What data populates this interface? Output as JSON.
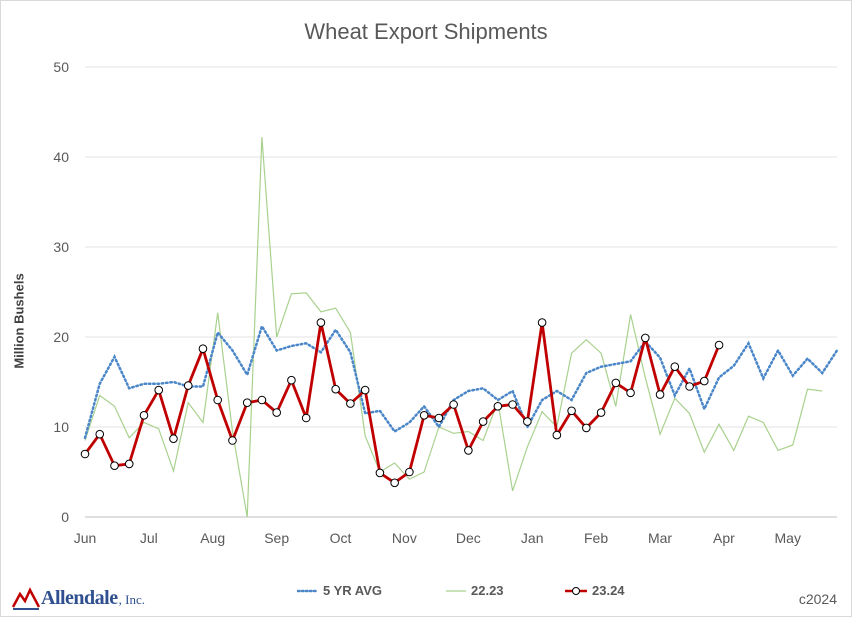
{
  "chart_data": {
    "type": "line",
    "title": "Wheat Export Shipments",
    "ylabel": "Million Bushels",
    "xlabel": "",
    "ylim": [
      0,
      50
    ],
    "yticks": [
      0,
      10,
      20,
      30,
      40,
      50
    ],
    "month_labels": [
      "Jun",
      "Jul",
      "Aug",
      "Sep",
      "Oct",
      "Nov",
      "Dec",
      "Jan",
      "Feb",
      "Mar",
      "Apr",
      "May"
    ],
    "grid": "horizontal",
    "legend_position": "bottom",
    "series": [
      {
        "name": "5 YR AVG",
        "color": "#4a86c8",
        "style": "dotted",
        "values": [
          8.8,
          14.8,
          17.8,
          14.3,
          14.8,
          14.8,
          15.0,
          14.5,
          14.5,
          20.5,
          18.5,
          15.8,
          21.2,
          18.5,
          19.0,
          19.3,
          18.3,
          20.8,
          18.3,
          11.5,
          11.8,
          9.5,
          10.5,
          12.3,
          10.0,
          13.0,
          14.0,
          14.3,
          13.0,
          14.0,
          10.0,
          13.0,
          14.0,
          13.0,
          16.0,
          16.7,
          17.0,
          17.3,
          19.5,
          17.7,
          13.5,
          16.5,
          12.0,
          15.5,
          16.8,
          19.3,
          15.4,
          18.5,
          15.7,
          17.6,
          16.0,
          18.5
        ]
      },
      {
        "name": "22.23",
        "color": "#a9d18e",
        "style": "thin",
        "values": [
          8.5,
          13.5,
          12.3,
          8.8,
          10.5,
          9.8,
          5.1,
          12.7,
          10.5,
          22.7,
          9.5,
          0.0,
          42.2,
          20.0,
          24.8,
          24.9,
          22.8,
          23.2,
          20.5,
          9.0,
          5.0,
          6.0,
          4.2,
          5.0,
          10.0,
          9.3,
          9.5,
          8.5,
          12.8,
          2.9,
          7.8,
          11.7,
          10.0,
          18.2,
          19.7,
          18.2,
          12.3,
          22.5,
          15.5,
          9.2,
          13.2,
          11.5,
          7.2,
          10.3,
          7.4,
          11.2,
          10.5,
          7.4,
          8.0,
          14.2,
          14.0
        ]
      },
      {
        "name": "23.24",
        "color": "#c00000",
        "style": "markers",
        "values": [
          7.0,
          9.2,
          5.7,
          5.9,
          11.3,
          14.1,
          8.7,
          14.6,
          18.7,
          13.0,
          8.5,
          12.7,
          13.0,
          11.6,
          15.2,
          11.0,
          21.6,
          14.2,
          12.6,
          14.1,
          4.9,
          3.8,
          5.0,
          11.3,
          11.0,
          12.5,
          7.4,
          10.6,
          12.3,
          12.5,
          10.6,
          21.6,
          9.1,
          11.8,
          9.9,
          11.6,
          14.9,
          13.8,
          19.9,
          13.6,
          16.7,
          14.5,
          15.1,
          19.1
        ]
      }
    ]
  },
  "footer": {
    "logo_text": "Allendale",
    "logo_suffix": ", Inc.",
    "copyright": "c2024"
  }
}
